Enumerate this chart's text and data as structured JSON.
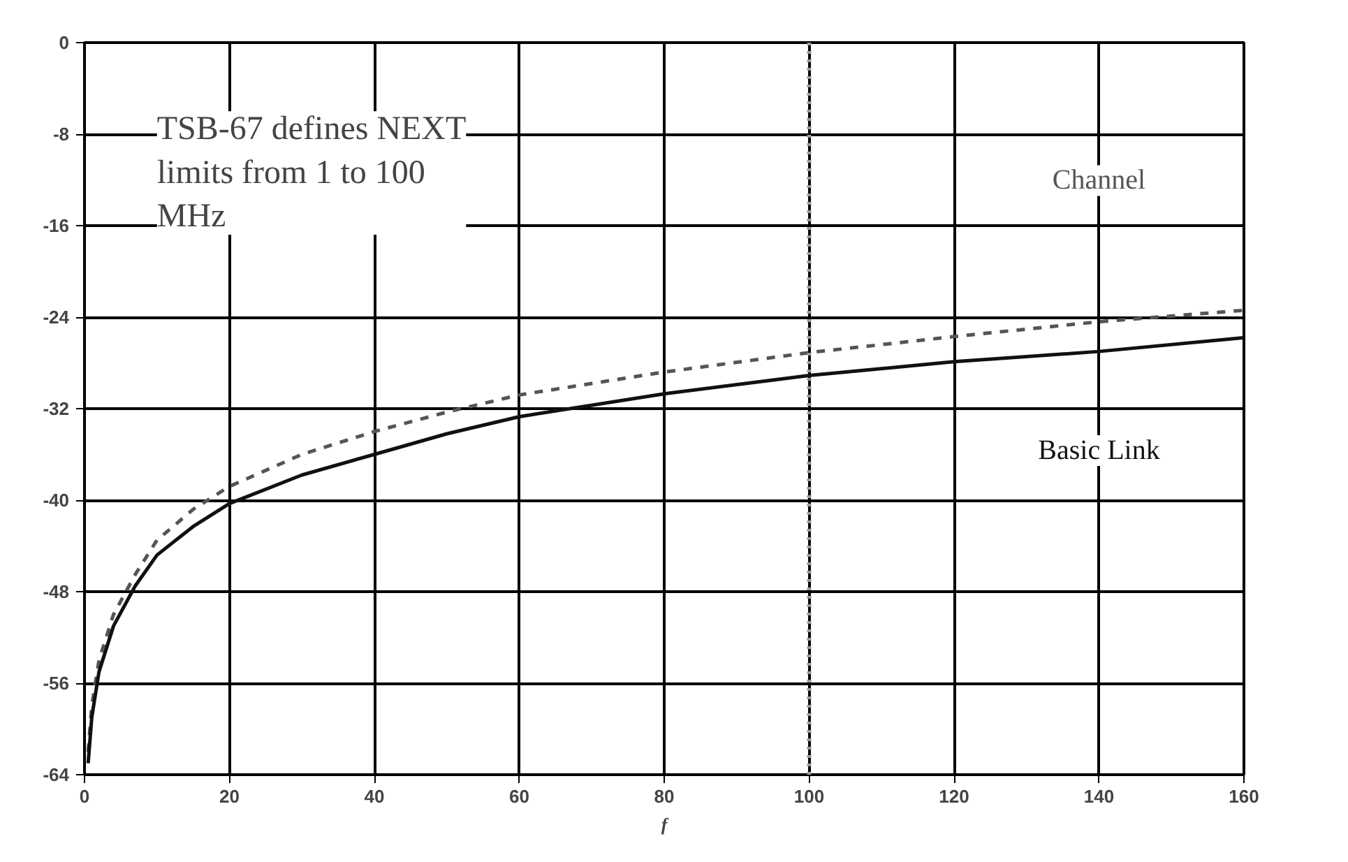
{
  "chart_data": {
    "type": "line",
    "xlabel": "f",
    "xlim": [
      0,
      160
    ],
    "ylim": [
      -64,
      0
    ],
    "xticks": [
      0,
      20,
      40,
      60,
      80,
      100,
      120,
      140,
      160
    ],
    "yticks": [
      0,
      -8,
      -16,
      -24,
      -32,
      -40,
      -48,
      -56,
      -64
    ],
    "grid": true,
    "marker": "none",
    "annotations": [
      "TSB-67 defines NEXT limits from 1 to 100 MHz"
    ],
    "ref_lines": [
      {
        "axis": "x",
        "value": 100,
        "color": "#999999",
        "line_style": "dotted"
      }
    ],
    "series": [
      {
        "name": "Channel",
        "color": "#555555",
        "line_style": "dashed",
        "x": [
          0.5,
          1,
          2,
          4,
          7,
          10,
          15,
          20,
          30,
          40,
          50,
          60,
          80,
          100,
          120,
          140,
          160
        ],
        "values": [
          -62,
          -58,
          -54,
          -50,
          -46.5,
          -43.5,
          -40.8,
          -38.8,
          -36,
          -34,
          -32.3,
          -30.8,
          -28.8,
          -27.1,
          -25.7,
          -24.4,
          -23.4
        ]
      },
      {
        "name": "Basic Link",
        "color": "#111111",
        "line_style": "solid",
        "x": [
          0.5,
          1,
          2,
          4,
          7,
          10,
          15,
          20,
          30,
          40,
          50,
          60,
          80,
          100,
          120,
          140,
          160
        ],
        "values": [
          -63,
          -59,
          -55,
          -51,
          -47.5,
          -44.8,
          -42.3,
          -40.3,
          -37.8,
          -36,
          -34.2,
          -32.7,
          -30.7,
          -29.1,
          -27.9,
          -27,
          -25.8
        ]
      }
    ]
  }
}
